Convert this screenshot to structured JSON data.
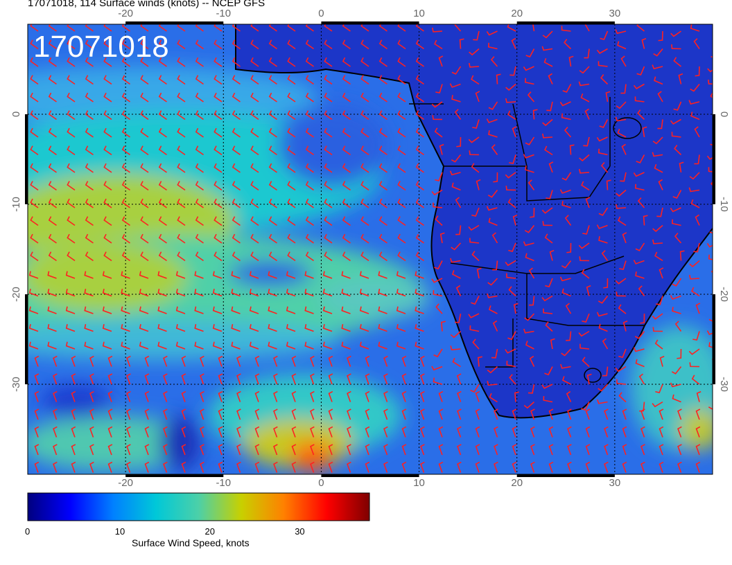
{
  "title": "17071018, 114 Surface winds (knots) -- NCEP GFS",
  "stamp": "17071018",
  "map": {
    "variable": "Surface wind speed and direction",
    "units": "knots",
    "region": "South Atlantic / Southern Africa",
    "lon_range": [
      -30,
      40
    ],
    "lat_range": [
      -40,
      10
    ],
    "lon_ticks": [
      "-20",
      "-10",
      "0",
      "10",
      "20",
      "30"
    ],
    "lat_ticks": [
      "0",
      "-10",
      "-20",
      "-30"
    ],
    "wind_barb_color": "#ff2020",
    "land_outline_color": "#000000",
    "grid": "dotted"
  },
  "colorbar": {
    "title": "Surface Wind Speed, knots",
    "min": 0,
    "max": 38,
    "ticks": [
      "0",
      "10",
      "20",
      "30"
    ],
    "colors": [
      "#00007f",
      "#0000ff",
      "#0080ff",
      "#00c8d8",
      "#4cd0a8",
      "#c8d000",
      "#ff8000",
      "#ff0000",
      "#7f0000"
    ]
  }
}
